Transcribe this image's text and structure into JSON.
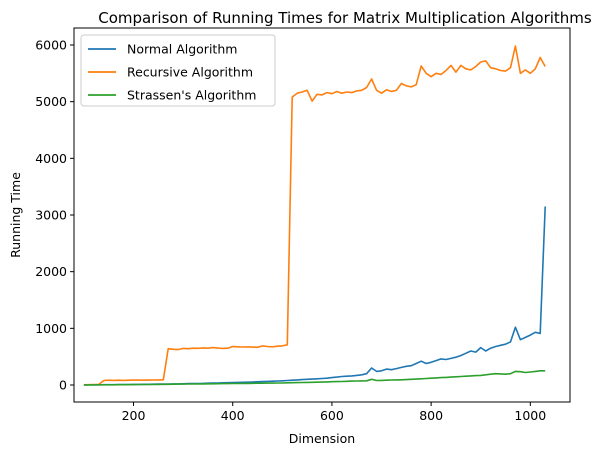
{
  "chart_data": {
    "type": "line",
    "title": "Comparison of Running Times for Matrix Multiplication Algorithms",
    "xlabel": "Dimension",
    "ylabel": "Running Time",
    "xlim": [
      80,
      1080
    ],
    "ylim": [
      -300,
      6300
    ],
    "xticks": [
      200,
      400,
      600,
      800,
      1000
    ],
    "yticks": [
      0,
      1000,
      2000,
      3000,
      4000,
      5000,
      6000
    ],
    "grid": false,
    "legend_position": "top-left",
    "x": [
      100,
      110,
      120,
      130,
      140,
      150,
      160,
      170,
      180,
      190,
      200,
      210,
      220,
      230,
      240,
      250,
      260,
      270,
      280,
      290,
      300,
      310,
      320,
      330,
      340,
      350,
      360,
      370,
      380,
      390,
      400,
      410,
      420,
      430,
      440,
      450,
      460,
      470,
      480,
      490,
      500,
      510,
      520,
      530,
      540,
      550,
      560,
      570,
      580,
      590,
      600,
      610,
      620,
      630,
      640,
      650,
      660,
      670,
      680,
      690,
      700,
      710,
      720,
      730,
      740,
      750,
      760,
      770,
      780,
      790,
      800,
      810,
      820,
      830,
      840,
      850,
      860,
      870,
      880,
      890,
      900,
      910,
      920,
      930,
      940,
      950,
      960,
      970,
      980,
      990,
      1000,
      1010,
      1020,
      1030
    ],
    "series": [
      {
        "name": "Normal Algorithm",
        "color": "#1f77b4",
        "values": [
          2,
          3,
          3,
          4,
          5,
          6,
          6,
          7,
          8,
          9,
          10,
          11,
          12,
          13,
          14,
          15,
          16,
          18,
          19,
          20,
          22,
          24,
          25,
          27,
          29,
          31,
          33,
          35,
          38,
          40,
          42,
          45,
          48,
          50,
          53,
          56,
          60,
          63,
          67,
          70,
          75,
          80,
          85,
          90,
          95,
          100,
          105,
          110,
          115,
          120,
          130,
          140,
          150,
          155,
          160,
          170,
          180,
          200,
          300,
          240,
          250,
          280,
          270,
          290,
          310,
          330,
          340,
          380,
          420,
          380,
          400,
          430,
          460,
          450,
          470,
          490,
          520,
          560,
          600,
          580,
          660,
          600,
          650,
          680,
          700,
          720,
          760,
          1020,
          800,
          840,
          880,
          930,
          910,
          3150
        ]
      },
      {
        "name": "Recursive Algorithm",
        "color": "#ff7f0e",
        "values": [
          3,
          5,
          7,
          10,
          80,
          85,
          82,
          85,
          82,
          84,
          86,
          88,
          85,
          87,
          88,
          90,
          92,
          640,
          630,
          625,
          645,
          640,
          650,
          648,
          655,
          650,
          660,
          652,
          645,
          650,
          680,
          675,
          670,
          672,
          668,
          665,
          690,
          680,
          675,
          685,
          690,
          710,
          5080,
          5150,
          5170,
          5200,
          5010,
          5130,
          5120,
          5160,
          5140,
          5180,
          5150,
          5170,
          5160,
          5190,
          5200,
          5250,
          5400,
          5200,
          5150,
          5210,
          5180,
          5200,
          5320,
          5280,
          5260,
          5300,
          5630,
          5500,
          5440,
          5500,
          5480,
          5550,
          5640,
          5520,
          5640,
          5580,
          5560,
          5620,
          5700,
          5720,
          5600,
          5580,
          5550,
          5540,
          5600,
          5980,
          5500,
          5560,
          5500,
          5580,
          5780,
          5620
        ]
      },
      {
        "name": "Strassen's Algorithm",
        "color": "#2ca02c",
        "values": [
          1,
          2,
          2,
          3,
          3,
          4,
          4,
          5,
          6,
          6,
          7,
          8,
          8,
          9,
          10,
          11,
          12,
          13,
          14,
          15,
          16,
          17,
          18,
          19,
          20,
          21,
          22,
          23,
          24,
          25,
          26,
          27,
          28,
          29,
          30,
          31,
          32,
          33,
          34,
          35,
          36,
          38,
          40,
          42,
          44,
          46,
          48,
          50,
          52,
          55,
          58,
          60,
          62,
          65,
          68,
          70,
          72,
          75,
          100,
          80,
          82,
          85,
          88,
          90,
          92,
          95,
          100,
          105,
          110,
          115,
          120,
          125,
          130,
          135,
          140,
          145,
          150,
          155,
          160,
          165,
          170,
          180,
          190,
          200,
          195,
          190,
          200,
          240,
          235,
          220,
          230,
          240,
          250,
          250
        ]
      }
    ]
  }
}
